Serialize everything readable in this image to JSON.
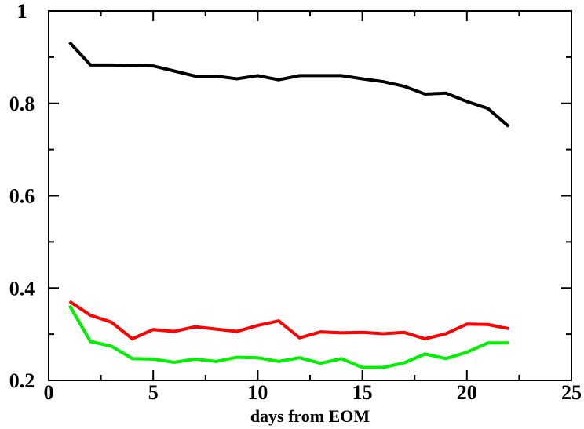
{
  "chart_data": {
    "type": "line",
    "title": "",
    "xlabel": "days from EOM",
    "ylabel": "",
    "xlim": [
      0,
      25
    ],
    "ylim": [
      0.2,
      1.0
    ],
    "x_ticks": [
      0,
      5,
      10,
      15,
      20,
      25
    ],
    "y_ticks": [
      0.2,
      0.4,
      0.6,
      0.8,
      1.0
    ],
    "x_tick_labels": [
      "0",
      "5",
      "10",
      "15",
      "20",
      "25"
    ],
    "y_tick_labels": [
      "0.2",
      "0.4",
      "0.6",
      "0.8",
      "1"
    ],
    "x_minor_step": 2.5,
    "y_minor_step": 0.1,
    "grid": false,
    "legend": "none",
    "x": [
      1,
      2,
      3,
      4,
      5,
      6,
      7,
      8,
      9,
      10,
      11,
      12,
      13,
      14,
      15,
      16,
      17,
      18,
      19,
      20,
      21,
      22
    ],
    "series": [
      {
        "color": "#000000",
        "values": [
          0.932,
          0.883,
          0.883,
          0.882,
          0.881,
          0.87,
          0.859,
          0.859,
          0.853,
          0.86,
          0.851,
          0.86,
          0.86,
          0.86,
          0.853,
          0.847,
          0.837,
          0.82,
          0.822,
          0.804,
          0.789,
          0.75
        ]
      },
      {
        "color": "#ff0000",
        "values": [
          0.371,
          0.341,
          0.326,
          0.29,
          0.31,
          0.306,
          0.316,
          0.311,
          0.306,
          0.319,
          0.329,
          0.292,
          0.305,
          0.303,
          0.304,
          0.301,
          0.304,
          0.29,
          0.301,
          0.322,
          0.321,
          0.312
        ]
      },
      {
        "color": "#00ee00",
        "values": [
          0.362,
          0.284,
          0.274,
          0.247,
          0.246,
          0.239,
          0.246,
          0.241,
          0.25,
          0.249,
          0.241,
          0.249,
          0.237,
          0.247,
          0.228,
          0.228,
          0.238,
          0.257,
          0.247,
          0.261,
          0.281,
          0.281
        ]
      }
    ]
  }
}
